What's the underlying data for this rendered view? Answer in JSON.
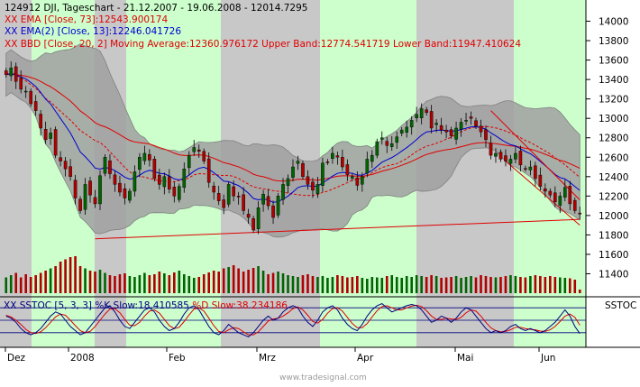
{
  "header": {
    "title": "124912  DJI, Tageschart - 21.12.2007 - 19.06.2008 - 12014.7295",
    "ema73": "XX EMA [Close, 73]:12543.900174",
    "ema13": "XX EMA(2) [Close, 13]:12246.041726",
    "bbd": "XX BBD [Close, 20, 2] Moving Average:12360.976172 Upper Band:12774.541719 Lower Band:11947.410624"
  },
  "oscillator": {
    "legend_prefix": "XX SSTOC [5, 3, 3] ",
    "k_label": "%K Slow:18.410585 ",
    "d_label": "%D Slow:38.234186",
    "side_label": "SSTOC"
  },
  "watermark": "www.tradesignal.com",
  "colors": {
    "up": "#006400",
    "down": "#b00000",
    "band": "#a0a0a0",
    "ema73": "#e00000",
    "ema13": "#0000d0",
    "trend": "#e00000",
    "grid_light": "#ccffcc",
    "grid_dark": "#c8c8c8",
    "k_line": "#000080",
    "d_line": "#e00000"
  },
  "chart_data": {
    "type": "candlestick",
    "ylim": [
      11200,
      14200
    ],
    "yticks": [
      11400,
      11600,
      11800,
      12000,
      12200,
      12400,
      12600,
      12800,
      13000,
      13200,
      13400,
      13600,
      13800,
      14000
    ],
    "ytick_labels": [
      "11400",
      "11600",
      "11800",
      "12000",
      "12200",
      "12400",
      "12600",
      "12800",
      "13000",
      "13200",
      "13400",
      "13600",
      "13800",
      "14000"
    ],
    "x_month_labels": [
      "Dez",
      "2008",
      "Feb",
      "Mrz",
      "Apr",
      "Mai",
      "Jun"
    ],
    "series_ohlc_close": [
      13450,
      13520,
      13380,
      13300,
      13280,
      13150,
      13080,
      12900,
      12780,
      12850,
      12620,
      12560,
      12480,
      12400,
      12180,
      12050,
      12320,
      12210,
      12120,
      12410,
      12600,
      12430,
      12320,
      12240,
      12180,
      12250,
      12450,
      12600,
      12640,
      12570,
      12380,
      12320,
      12400,
      12270,
      12200,
      12300,
      12480,
      12620,
      12700,
      12660,
      12560,
      12340,
      12240,
      12150,
      12080,
      12320,
      12200,
      12190,
      12050,
      11980,
      11850,
      12080,
      12220,
      12100,
      11980,
      12200,
      12320,
      12380,
      12500,
      12560,
      12400,
      12320,
      12260,
      12320,
      12540,
      12550,
      12640,
      12600,
      12500,
      12420,
      12400,
      12310,
      12400,
      12580,
      12620,
      12760,
      12800,
      12720,
      12740,
      12810,
      12880,
      12910,
      12980,
      13040,
      13100,
      13060,
      12900,
      12950,
      12880,
      12860,
      12820,
      12900,
      12960,
      12980,
      13000,
      12920,
      12860,
      12780,
      12620,
      12640,
      12580,
      12560,
      12580,
      12640,
      12520,
      12480,
      12500,
      12380,
      12300,
      12250,
      12210,
      12140,
      12200,
      12290,
      12120,
      12050,
      12014
    ],
    "volume_levels": [
      0.35,
      0.4,
      0.45,
      0.35,
      0.42,
      0.36,
      0.4,
      0.45,
      0.5,
      0.55,
      0.6,
      0.7,
      0.75,
      0.8,
      0.82,
      0.6,
      0.55,
      0.5,
      0.48,
      0.52,
      0.45,
      0.4,
      0.38,
      0.42,
      0.44,
      0.38,
      0.36,
      0.4,
      0.45,
      0.4,
      0.42,
      0.48,
      0.44,
      0.4,
      0.46,
      0.5,
      0.42,
      0.38,
      0.34,
      0.36,
      0.42,
      0.46,
      0.5,
      0.48,
      0.55,
      0.58,
      0.62,
      0.55,
      0.48,
      0.52,
      0.56,
      0.6,
      0.5,
      0.42,
      0.45,
      0.48,
      0.44,
      0.4,
      0.38,
      0.36,
      0.4,
      0.42,
      0.38,
      0.36,
      0.38,
      0.34,
      0.36,
      0.4,
      0.38,
      0.35,
      0.36,
      0.38,
      0.34,
      0.32,
      0.36,
      0.35,
      0.34,
      0.38,
      0.4,
      0.36,
      0.34,
      0.38,
      0.36,
      0.4,
      0.38,
      0.36,
      0.4,
      0.38,
      0.34,
      0.35,
      0.36,
      0.38,
      0.34,
      0.36,
      0.38,
      0.35,
      0.4,
      0.38,
      0.36,
      0.35,
      0.36,
      0.38,
      0.4,
      0.38,
      0.36,
      0.35,
      0.38,
      0.4,
      0.38,
      0.36,
      0.38,
      0.36,
      0.35,
      0.34,
      0.33,
      0.3,
      0.08
    ],
    "stoch_k": [
      0.6,
      0.55,
      0.45,
      0.3,
      0.2,
      0.15,
      0.2,
      0.3,
      0.45,
      0.6,
      0.7,
      0.65,
      0.5,
      0.35,
      0.25,
      0.15,
      0.2,
      0.35,
      0.5,
      0.65,
      0.8,
      0.85,
      0.7,
      0.5,
      0.35,
      0.3,
      0.45,
      0.6,
      0.75,
      0.8,
      0.7,
      0.5,
      0.35,
      0.25,
      0.3,
      0.45,
      0.65,
      0.8,
      0.85,
      0.75,
      0.55,
      0.35,
      0.2,
      0.15,
      0.25,
      0.4,
      0.3,
      0.2,
      0.15,
      0.1,
      0.2,
      0.35,
      0.5,
      0.6,
      0.5,
      0.55,
      0.7,
      0.8,
      0.85,
      0.8,
      0.6,
      0.45,
      0.35,
      0.5,
      0.7,
      0.8,
      0.85,
      0.75,
      0.55,
      0.4,
      0.3,
      0.25,
      0.4,
      0.6,
      0.75,
      0.85,
      0.9,
      0.8,
      0.7,
      0.75,
      0.8,
      0.85,
      0.88,
      0.85,
      0.75,
      0.6,
      0.45,
      0.5,
      0.6,
      0.55,
      0.45,
      0.55,
      0.7,
      0.8,
      0.75,
      0.6,
      0.45,
      0.3,
      0.2,
      0.25,
      0.2,
      0.25,
      0.35,
      0.4,
      0.3,
      0.25,
      0.3,
      0.25,
      0.2,
      0.25,
      0.35,
      0.45,
      0.6,
      0.75,
      0.6,
      0.35,
      0.18
    ],
    "stoch_d": [
      0.62,
      0.58,
      0.5,
      0.4,
      0.28,
      0.2,
      0.18,
      0.22,
      0.32,
      0.45,
      0.58,
      0.65,
      0.62,
      0.5,
      0.37,
      0.25,
      0.2,
      0.23,
      0.35,
      0.5,
      0.65,
      0.77,
      0.78,
      0.68,
      0.52,
      0.38,
      0.37,
      0.45,
      0.6,
      0.72,
      0.75,
      0.67,
      0.52,
      0.37,
      0.3,
      0.33,
      0.47,
      0.63,
      0.77,
      0.8,
      0.72,
      0.55,
      0.37,
      0.23,
      0.2,
      0.27,
      0.32,
      0.3,
      0.22,
      0.15,
      0.15,
      0.22,
      0.35,
      0.48,
      0.53,
      0.55,
      0.6,
      0.68,
      0.78,
      0.82,
      0.75,
      0.62,
      0.47,
      0.43,
      0.52,
      0.67,
      0.78,
      0.8,
      0.72,
      0.57,
      0.42,
      0.32,
      0.32,
      0.42,
      0.58,
      0.73,
      0.83,
      0.85,
      0.8,
      0.75,
      0.75,
      0.8,
      0.84,
      0.86,
      0.83,
      0.73,
      0.6,
      0.52,
      0.52,
      0.55,
      0.53,
      0.52,
      0.57,
      0.68,
      0.75,
      0.72,
      0.6,
      0.45,
      0.32,
      0.25,
      0.22,
      0.23,
      0.27,
      0.33,
      0.33,
      0.3,
      0.28,
      0.27,
      0.24,
      0.23,
      0.27,
      0.35,
      0.47,
      0.6,
      0.65,
      0.57,
      0.38
    ]
  }
}
